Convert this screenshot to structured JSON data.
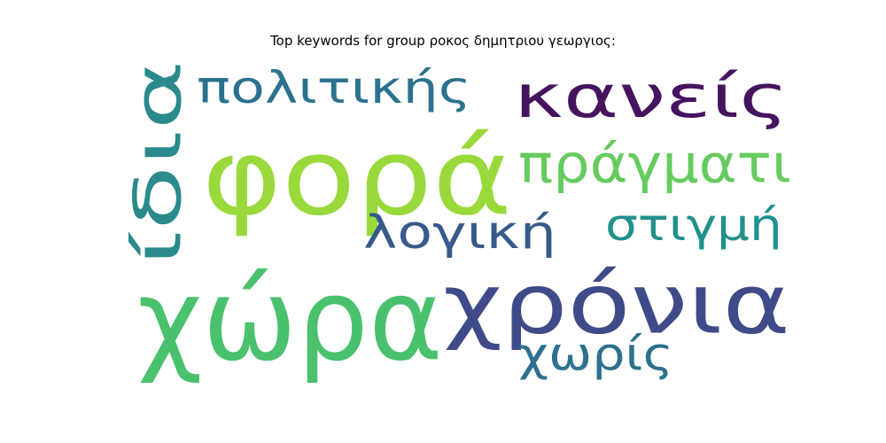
{
  "chart_data": {
    "type": "wordcloud",
    "title": "Top keywords for group ροκος δημητριου γεωργιος:",
    "words": [
      {
        "text": "φορά",
        "weight": 1.0,
        "color": "#9ad93b"
      },
      {
        "text": "χώρα",
        "weight": 0.98,
        "color": "#4ac16d"
      },
      {
        "text": "χρόνια",
        "weight": 0.95,
        "color": "#3f4a89"
      },
      {
        "text": "ίδια",
        "weight": 0.78,
        "color": "#2a8a8c"
      },
      {
        "text": "κανείς",
        "weight": 0.62,
        "color": "#46135f"
      },
      {
        "text": "πράγματι",
        "weight": 0.5,
        "color": "#65cb5e"
      },
      {
        "text": "πολιτικής",
        "weight": 0.47,
        "color": "#2b728e"
      },
      {
        "text": "στιγμή",
        "weight": 0.42,
        "color": "#21918c"
      },
      {
        "text": "λογική",
        "weight": 0.4,
        "color": "#375a8c"
      },
      {
        "text": "χωρίς",
        "weight": 0.4,
        "color": "#2c718e"
      }
    ]
  }
}
